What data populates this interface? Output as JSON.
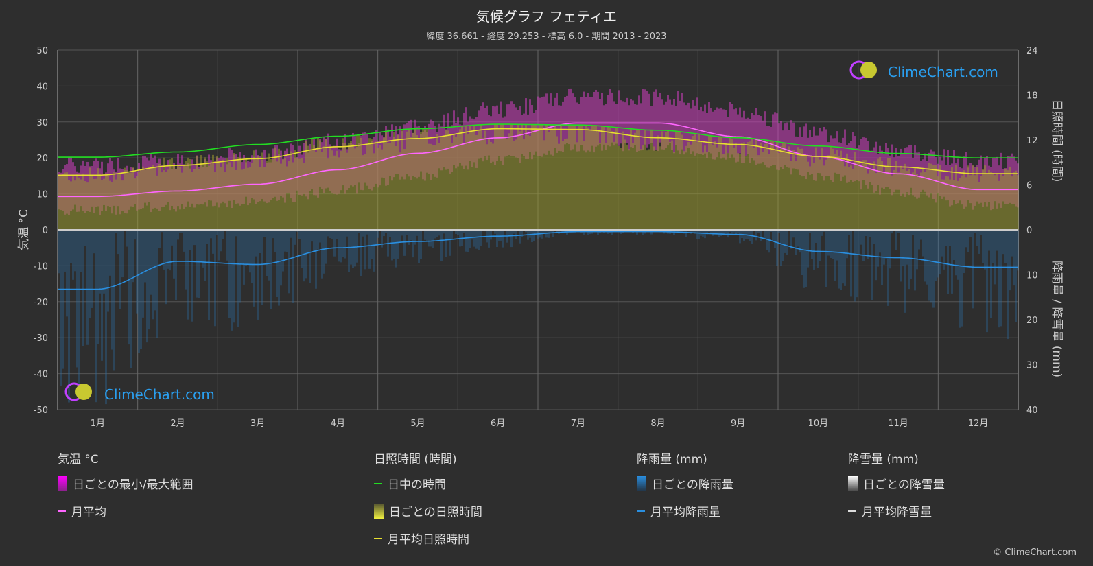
{
  "title": "気候グラフ フェティエ",
  "subtitle": "緯度 36.661 - 経度 29.253 - 標高 6.0 - 期間 2013 - 2023",
  "watermark": "ClimeChart.com",
  "copyright": "© ClimeChart.com",
  "chart_data": {
    "type": "line",
    "categories": [
      "1月",
      "2月",
      "3月",
      "4月",
      "5月",
      "6月",
      "7月",
      "8月",
      "9月",
      "10月",
      "11月",
      "12月"
    ],
    "left_axis": {
      "label": "気温 °C",
      "range": [
        -50,
        50
      ],
      "ticks": [
        "50",
        "40",
        "30",
        "20",
        "10",
        "0",
        "-10",
        "-20",
        "-30",
        "-40",
        "-50"
      ]
    },
    "right_axis_top": {
      "label": "日照時間 (時間)",
      "range": [
        0,
        24
      ],
      "ticks": [
        "24",
        "18",
        "12",
        "6",
        "0"
      ]
    },
    "right_axis_bottom": {
      "label": "降雨量 / 降雪量 (mm)",
      "range": [
        0,
        40
      ],
      "ticks": [
        "0",
        "10",
        "20",
        "30",
        "40"
      ]
    },
    "grid": true,
    "series": [
      {
        "name": "月平均",
        "axis": "temperature",
        "color": "#ff66ff",
        "values": [
          9.3,
          10.8,
          12.7,
          16.7,
          21.3,
          25.6,
          29.7,
          29.7,
          25.9,
          20.4,
          15.6,
          11.2
        ]
      },
      {
        "name": "日中の時間",
        "axis": "sunshine",
        "color": "#22dd22",
        "values": [
          9.7,
          10.4,
          11.4,
          12.5,
          13.5,
          14.1,
          14.0,
          13.3,
          12.3,
          11.2,
          10.2,
          9.6
        ]
      },
      {
        "name": "月平均日照時間",
        "axis": "sunshine",
        "color": "#e8e030",
        "values": [
          7.3,
          8.6,
          9.5,
          11.1,
          12.2,
          13.5,
          13.4,
          12.3,
          11.4,
          9.8,
          8.4,
          7.5
        ]
      },
      {
        "name": "月平均降雨量",
        "axis": "precipitation",
        "color": "#2a8fe0",
        "values": [
          13.2,
          7.0,
          7.7,
          4.0,
          2.6,
          1.4,
          0.4,
          0.4,
          1.0,
          4.8,
          6.2,
          8.3
        ]
      },
      {
        "name": "月平均降雪量",
        "axis": "precipitation",
        "color": "#dddddd",
        "values": [
          0,
          0,
          0,
          0,
          0,
          0,
          0,
          0,
          0,
          0,
          0,
          0
        ]
      }
    ],
    "daily_temp_range": {
      "min": [
        5.5,
        6.5,
        8,
        11,
        15,
        19.5,
        23,
        23,
        20,
        15,
        10.5,
        7
      ],
      "max": [
        18,
        19,
        21,
        24.5,
        29,
        33.5,
        37,
        37,
        33,
        27,
        22,
        19
      ]
    }
  },
  "legend": {
    "temp": {
      "header": "気温 °C",
      "items": [
        "日ごとの最小/最大範囲",
        "月平均"
      ]
    },
    "sun": {
      "header": "日照時間 (時間)",
      "items": [
        "日中の時間",
        "日ごとの日照時間",
        "月平均日照時間"
      ]
    },
    "rain": {
      "header": "降雨量 (mm)",
      "items": [
        "日ごとの降雨量",
        "月平均降雨量"
      ]
    },
    "snow": {
      "header": "降雪量 (mm)",
      "items": [
        "日ごとの降雪量",
        "月平均降雪量"
      ]
    }
  }
}
